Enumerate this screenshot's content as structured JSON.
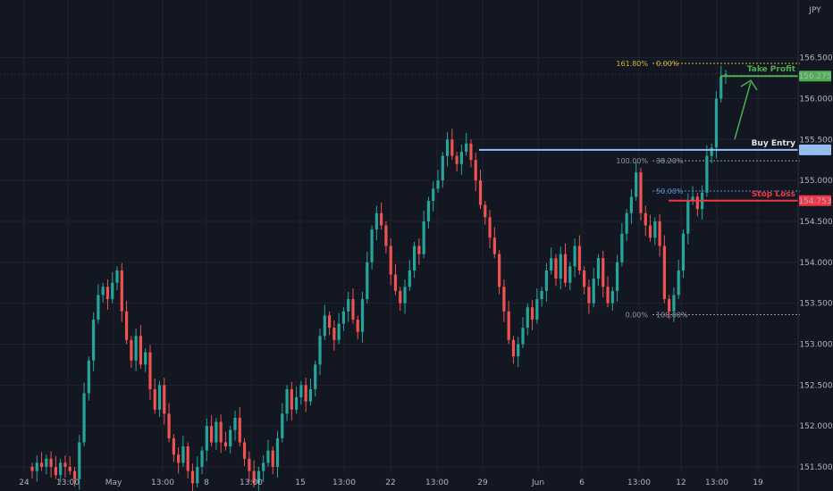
{
  "chart_data": {
    "type": "candlestick",
    "currency": "JPY",
    "ylim": [
      151.4,
      156.8
    ],
    "y_ticks": [
      "156.500",
      "156.000",
      "155.500",
      "155.000",
      "154.500",
      "154.000",
      "153.500",
      "153.000",
      "152.500",
      "152.000",
      "151.500"
    ],
    "x_tick_labels": [
      "24",
      "13:00",
      "May",
      "13:00",
      "8",
      "13:00",
      "15",
      "13:00",
      "22",
      "13:00",
      "29",
      "Jun",
      "6",
      "13:00",
      "12",
      "13:00",
      "19"
    ],
    "grid": true,
    "candles_close": [
      151.45,
      151.55,
      151.5,
      151.6,
      151.5,
      151.4,
      151.55,
      151.5,
      151.45,
      151.35,
      151.8,
      152.4,
      152.8,
      153.3,
      153.6,
      153.7,
      153.55,
      153.75,
      153.9,
      153.4,
      153.05,
      152.8,
      153.1,
      152.75,
      152.9,
      152.45,
      152.2,
      152.5,
      152.15,
      151.85,
      151.65,
      151.55,
      151.75,
      151.45,
      151.3,
      151.5,
      151.7,
      152.0,
      151.8,
      152.05,
      151.8,
      151.75,
      151.95,
      152.1,
      151.8,
      151.6,
      151.45,
      151.3,
      151.45,
      151.55,
      151.7,
      151.5,
      151.85,
      152.15,
      152.45,
      152.2,
      152.35,
      152.5,
      152.3,
      152.45,
      152.75,
      153.1,
      153.35,
      153.2,
      153.05,
      153.25,
      153.4,
      153.55,
      153.3,
      153.15,
      153.55,
      154.0,
      154.4,
      154.6,
      154.45,
      154.2,
      153.85,
      153.65,
      153.5,
      153.7,
      153.9,
      154.2,
      154.1,
      154.5,
      154.75,
      154.9,
      155.0,
      155.3,
      155.5,
      155.3,
      155.2,
      155.35,
      155.45,
      155.25,
      155.0,
      154.7,
      154.55,
      154.3,
      154.1,
      153.7,
      153.4,
      153.05,
      152.85,
      153.0,
      153.2,
      153.45,
      153.3,
      153.55,
      153.65,
      153.9,
      154.05,
      153.8,
      154.1,
      153.75,
      153.95,
      154.2,
      153.9,
      153.7,
      153.5,
      153.8,
      154.05,
      153.7,
      153.5,
      153.65,
      154.0,
      154.35,
      154.6,
      154.8,
      155.1,
      154.6,
      154.45,
      154.3,
      154.5,
      154.2,
      153.55,
      153.4,
      153.6,
      153.9,
      154.35,
      154.75,
      154.8,
      154.65,
      154.85,
      155.3,
      155.4,
      156.0,
      156.27,
      156.3
    ],
    "key_levels": [
      {
        "label": "Take Profit",
        "price": "156.275",
        "color": "#4caf50"
      },
      {
        "label": "Buy Entry",
        "price": "155.374",
        "color": "#90bff9"
      },
      {
        "label": "Stop Loss",
        "price": "154.753",
        "color": "#f23645"
      }
    ],
    "fib_levels": [
      {
        "left_label": "161.80%",
        "right_label": "0.00%",
        "value": 156.43,
        "color": "#d6b23a"
      },
      {
        "left_label": "100.00%",
        "right_label": "38.20%",
        "value": 155.24,
        "color": "#8f96a3"
      },
      {
        "left_label": "",
        "right_label": "50.00%",
        "value": 154.87,
        "color": "#5b8fd6"
      },
      {
        "left_label": "0.00%",
        "right_label": "100.00%",
        "value": 153.36,
        "color": "#8f96a3"
      }
    ]
  }
}
